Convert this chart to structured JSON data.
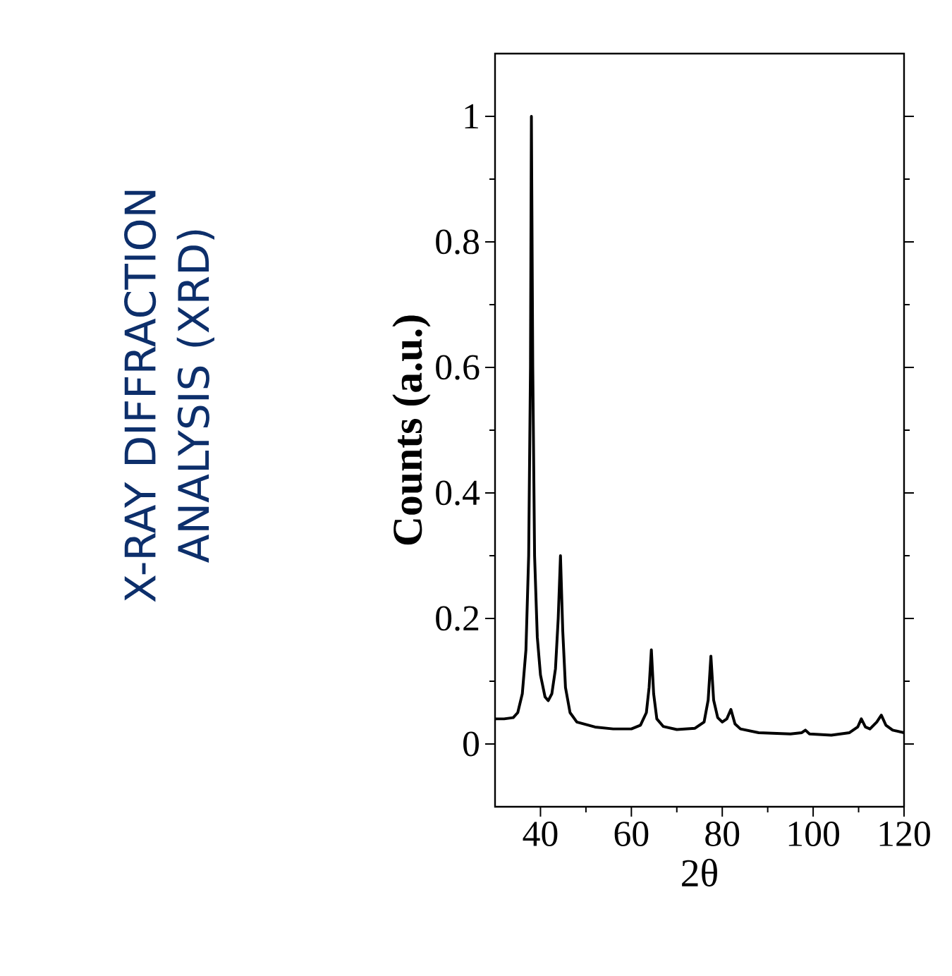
{
  "chart_data": {
    "type": "line",
    "title": "X-RAY DIFFRACTION ANALYSIS (XRD)",
    "xlabel": "2θ",
    "ylabel": "Counts (a.u.)",
    "color": "#000000",
    "x": [
      30,
      32,
      34,
      35,
      36,
      36.8,
      37.4,
      37.8,
      38.0,
      38.3,
      38.7,
      39.3,
      40,
      41,
      41.7,
      42.5,
      43.3,
      43.9,
      44.4,
      44.9,
      45.5,
      46.5,
      48,
      52,
      56,
      60,
      62,
      63.3,
      63.9,
      64.4,
      64.9,
      65.6,
      67,
      70,
      74,
      76,
      76.9,
      77.5,
      78.1,
      79,
      80,
      81,
      81.9,
      82.8,
      84,
      88,
      95,
      97.5,
      98.3,
      99.2,
      104,
      108,
      109.8,
      110.6,
      111.5,
      112.5,
      114,
      115,
      116,
      117.5,
      120
    ],
    "values": [
      0.04,
      0.04,
      0.042,
      0.05,
      0.08,
      0.15,
      0.3,
      0.6,
      1.0,
      0.6,
      0.3,
      0.17,
      0.11,
      0.075,
      0.069,
      0.08,
      0.12,
      0.2,
      0.3,
      0.18,
      0.09,
      0.05,
      0.035,
      0.027,
      0.024,
      0.024,
      0.03,
      0.05,
      0.09,
      0.15,
      0.08,
      0.04,
      0.028,
      0.023,
      0.025,
      0.035,
      0.07,
      0.14,
      0.07,
      0.042,
      0.035,
      0.04,
      0.055,
      0.032,
      0.024,
      0.018,
      0.016,
      0.018,
      0.022,
      0.016,
      0.014,
      0.018,
      0.027,
      0.04,
      0.027,
      0.024,
      0.035,
      0.046,
      0.03,
      0.022,
      0.018
    ],
    "xlim": [
      30,
      120
    ],
    "ylim": [
      -0.1,
      1.1
    ],
    "xticks": [
      40,
      60,
      80,
      100,
      120
    ],
    "yticks": [
      0,
      0.2,
      0.4,
      0.6,
      0.8,
      1
    ]
  }
}
